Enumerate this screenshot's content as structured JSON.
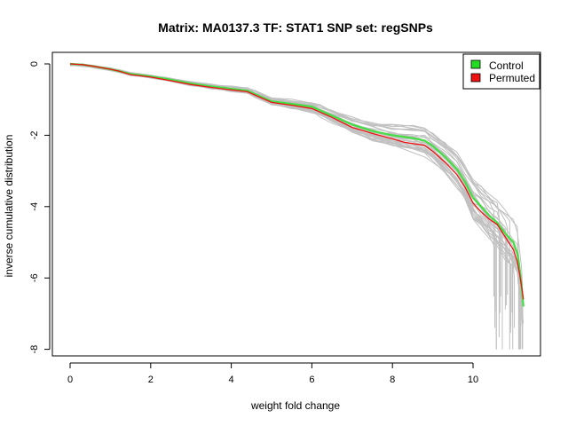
{
  "chart_data": {
    "type": "line",
    "title": "Matrix: MA0137.3 TF: STAT1 SNP set: regSNPs",
    "xlabel": "weight fold change",
    "ylabel": "inverse cumulative distribution",
    "xlim": [
      0,
      11.3
    ],
    "ylim": [
      -8,
      0
    ],
    "x_ticks": [
      0,
      2,
      4,
      6,
      8,
      10
    ],
    "y_ticks": [
      0,
      -2,
      -4,
      -6,
      -8
    ],
    "x_tick_labels": [
      "0",
      "2",
      "4",
      "6",
      "8",
      "10"
    ],
    "y_tick_labels": [
      "0",
      "-2",
      "-4",
      "-6",
      "-8"
    ],
    "legend_position": "top-right",
    "legend": [
      {
        "label": "Control",
        "color": "#22dd22"
      },
      {
        "label": "Permuted",
        "color": "#ee1111"
      }
    ],
    "series": [
      {
        "name": "Control",
        "color": "#44dd44",
        "x": [
          0.0,
          0.3,
          0.6,
          1.0,
          1.2,
          1.5,
          2.0,
          2.4,
          3.0,
          3.5,
          4.0,
          4.4,
          4.6,
          5.0,
          5.5,
          6.0,
          6.2,
          6.5,
          7.0,
          7.5,
          8.0,
          8.5,
          8.8,
          9.0,
          9.3,
          9.6,
          9.8,
          10.0,
          10.2,
          10.4,
          10.6,
          10.8,
          11.0,
          11.1,
          11.15,
          11.2,
          11.25
        ],
        "y": [
          0.0,
          -0.02,
          -0.07,
          -0.15,
          -0.2,
          -0.28,
          -0.35,
          -0.42,
          -0.55,
          -0.63,
          -0.7,
          -0.75,
          -0.85,
          -1.05,
          -1.12,
          -1.2,
          -1.3,
          -1.45,
          -1.7,
          -1.88,
          -2.0,
          -2.08,
          -2.15,
          -2.3,
          -2.6,
          -2.95,
          -3.3,
          -3.75,
          -4.0,
          -4.25,
          -4.45,
          -4.75,
          -5.0,
          -5.3,
          -5.7,
          -6.2,
          -6.8
        ]
      },
      {
        "name": "Permuted",
        "color": "#ee1111",
        "x": [
          0.0,
          0.3,
          0.6,
          1.0,
          1.2,
          1.5,
          2.0,
          2.4,
          3.0,
          3.5,
          4.0,
          4.4,
          4.6,
          5.0,
          5.5,
          6.0,
          6.2,
          6.5,
          7.0,
          7.5,
          8.0,
          8.3,
          8.8,
          9.0,
          9.3,
          9.6,
          9.8,
          10.0,
          10.2,
          10.4,
          10.6,
          10.8,
          11.0,
          11.1,
          11.15,
          11.2,
          11.25
        ],
        "y": [
          0.0,
          -0.02,
          -0.07,
          -0.15,
          -0.2,
          -0.3,
          -0.37,
          -0.45,
          -0.58,
          -0.66,
          -0.73,
          -0.78,
          -0.88,
          -1.08,
          -1.16,
          -1.25,
          -1.35,
          -1.5,
          -1.78,
          -1.95,
          -2.1,
          -2.2,
          -2.28,
          -2.45,
          -2.75,
          -3.1,
          -3.45,
          -3.9,
          -4.15,
          -4.35,
          -4.5,
          -4.85,
          -5.2,
          -5.55,
          -5.85,
          -6.2,
          -6.6
        ]
      }
    ],
    "background_series_color": "#c0c0c0",
    "background_series_count": 30
  }
}
